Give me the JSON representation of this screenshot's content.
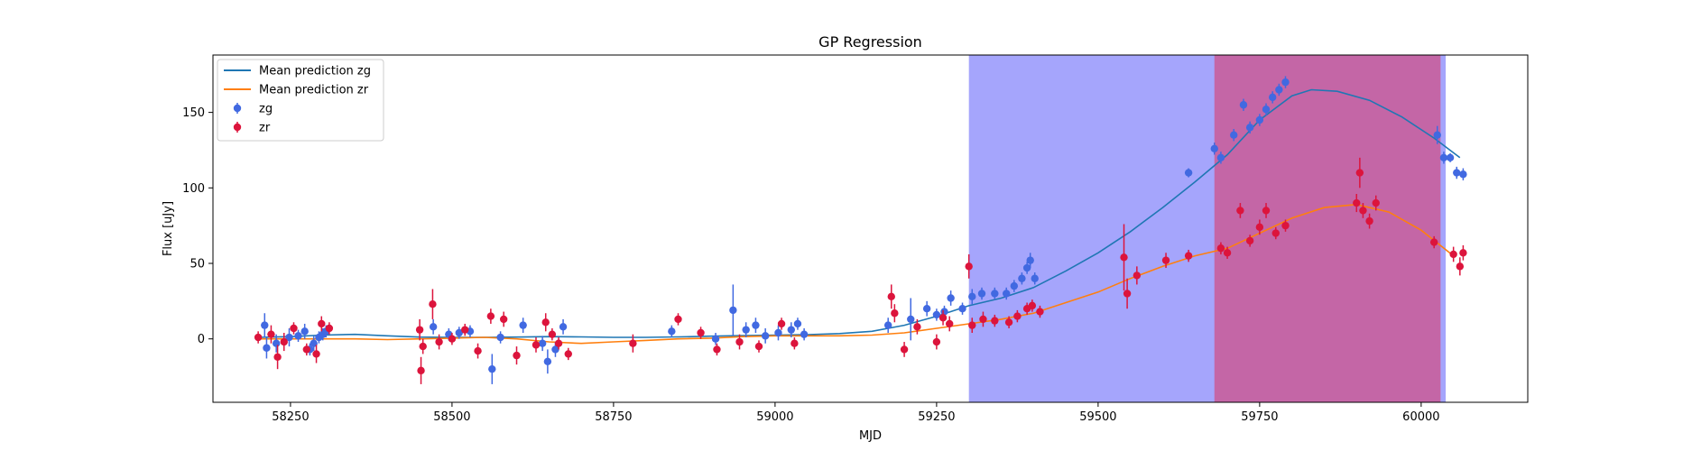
{
  "chart_data": {
    "type": "scatter",
    "title": "GP Regression",
    "xlabel": "MJD",
    "ylabel": "Flux [uJy]",
    "xlim": [
      58130,
      60165
    ],
    "ylim": [
      -42,
      188
    ],
    "xticks": [
      58250,
      58500,
      58750,
      59000,
      59250,
      59500,
      59750,
      60000
    ],
    "yticks": [
      0,
      50,
      100,
      150
    ],
    "grid": false,
    "legend": {
      "placement": "top-left"
    },
    "shaded_regions": [
      {
        "x0": 59300,
        "x1": 60038,
        "color": "#a5a5fc"
      },
      {
        "x0": 59680,
        "x1": 60030,
        "color": "#c466a6"
      }
    ],
    "series": [
      {
        "name": "Mean prediction zg",
        "kind": "line",
        "color": "#1f77b4",
        "points": [
          [
            58200,
            1
          ],
          [
            58250,
            1.5
          ],
          [
            58300,
            2.5
          ],
          [
            58350,
            3
          ],
          [
            58400,
            2
          ],
          [
            58450,
            1.2
          ],
          [
            58500,
            1
          ],
          [
            58550,
            1
          ],
          [
            58600,
            1.2
          ],
          [
            58650,
            1.5
          ],
          [
            58700,
            1.3
          ],
          [
            58750,
            1
          ],
          [
            58800,
            1
          ],
          [
            58850,
            1.3
          ],
          [
            58900,
            1.8
          ],
          [
            58950,
            2.2
          ],
          [
            59000,
            2.5
          ],
          [
            59050,
            2.8
          ],
          [
            59100,
            3.5
          ],
          [
            59150,
            5
          ],
          [
            59200,
            9
          ],
          [
            59250,
            15
          ],
          [
            59300,
            22
          ],
          [
            59350,
            27
          ],
          [
            59400,
            34
          ],
          [
            59450,
            45
          ],
          [
            59500,
            57
          ],
          [
            59550,
            71
          ],
          [
            59600,
            87
          ],
          [
            59650,
            104
          ],
          [
            59700,
            122
          ],
          [
            59750,
            145
          ],
          [
            59800,
            161
          ],
          [
            59830,
            165
          ],
          [
            59870,
            164
          ],
          [
            59920,
            158
          ],
          [
            59970,
            147
          ],
          [
            60020,
            133
          ],
          [
            60060,
            120
          ]
        ]
      },
      {
        "name": "Mean prediction zr",
        "kind": "line",
        "color": "#ff7f0e",
        "points": [
          [
            58200,
            0
          ],
          [
            58250,
            0
          ],
          [
            58300,
            0
          ],
          [
            58350,
            0
          ],
          [
            58400,
            -0.5
          ],
          [
            58450,
            0
          ],
          [
            58500,
            0.5
          ],
          [
            58550,
            1
          ],
          [
            58600,
            0
          ],
          [
            58650,
            -2
          ],
          [
            58700,
            -3
          ],
          [
            58750,
            -2
          ],
          [
            58800,
            -1
          ],
          [
            58850,
            0
          ],
          [
            58900,
            0.5
          ],
          [
            58950,
            1.5
          ],
          [
            59000,
            2
          ],
          [
            59050,
            2
          ],
          [
            59100,
            2
          ],
          [
            59150,
            2.5
          ],
          [
            59200,
            4
          ],
          [
            59250,
            7
          ],
          [
            59300,
            10
          ],
          [
            59350,
            13
          ],
          [
            59400,
            17
          ],
          [
            59450,
            24
          ],
          [
            59500,
            31
          ],
          [
            59550,
            40
          ],
          [
            59600,
            48
          ],
          [
            59650,
            55
          ],
          [
            59700,
            60
          ],
          [
            59750,
            70
          ],
          [
            59800,
            80
          ],
          [
            59850,
            87
          ],
          [
            59900,
            89
          ],
          [
            59950,
            84
          ],
          [
            60000,
            72
          ],
          [
            60050,
            55
          ]
        ]
      },
      {
        "name": "zg",
        "kind": "errorbar",
        "color": "#4169e1",
        "points": [
          [
            58210,
            9,
            8
          ],
          [
            58213,
            -6,
            7
          ],
          [
            58228,
            -3,
            6
          ],
          [
            58248,
            1,
            6
          ],
          [
            58262,
            2,
            4
          ],
          [
            58272,
            5,
            5
          ],
          [
            58280,
            -7,
            4
          ],
          [
            58286,
            -3,
            5
          ],
          [
            58294,
            1,
            4
          ],
          [
            58300,
            3,
            4
          ],
          [
            58305,
            5,
            4
          ],
          [
            58471,
            8,
            5
          ],
          [
            58495,
            3,
            4
          ],
          [
            58511,
            4,
            4
          ],
          [
            58528,
            5,
            4
          ],
          [
            58562,
            -20,
            10
          ],
          [
            58575,
            1,
            4
          ],
          [
            58610,
            9,
            5
          ],
          [
            58640,
            -3,
            5
          ],
          [
            58648,
            -15,
            8
          ],
          [
            58660,
            -7,
            5
          ],
          [
            58672,
            8,
            5
          ],
          [
            58840,
            5,
            4
          ],
          [
            58908,
            0,
            4
          ],
          [
            58935,
            19,
            17
          ],
          [
            58955,
            6,
            5
          ],
          [
            58970,
            9,
            5
          ],
          [
            58985,
            2,
            5
          ],
          [
            59005,
            4,
            5
          ],
          [
            59025,
            6,
            5
          ],
          [
            59035,
            10,
            4
          ],
          [
            59045,
            3,
            4
          ],
          [
            59175,
            9,
            5
          ],
          [
            59210,
            13,
            14
          ],
          [
            59235,
            20,
            5
          ],
          [
            59250,
            16,
            4
          ],
          [
            59262,
            18,
            4
          ],
          [
            59272,
            27,
            5
          ],
          [
            59290,
            20,
            4
          ],
          [
            59305,
            28,
            5
          ],
          [
            59320,
            30,
            4
          ],
          [
            59340,
            30,
            4
          ],
          [
            59358,
            30,
            4
          ],
          [
            59370,
            35,
            4
          ],
          [
            59382,
            40,
            4
          ],
          [
            59390,
            47,
            4
          ],
          [
            59395,
            52,
            5
          ],
          [
            59402,
            40,
            4
          ],
          [
            59640,
            110,
            3
          ],
          [
            59680,
            126,
            4
          ],
          [
            59690,
            120,
            4
          ],
          [
            59710,
            135,
            4
          ],
          [
            59725,
            155,
            4
          ],
          [
            59735,
            140,
            4
          ],
          [
            59750,
            145,
            4
          ],
          [
            59760,
            152,
            4
          ],
          [
            59770,
            160,
            4
          ],
          [
            59780,
            165,
            4
          ],
          [
            59790,
            170,
            4
          ],
          [
            60025,
            135,
            6
          ],
          [
            60035,
            120,
            4
          ],
          [
            60045,
            120,
            3
          ],
          [
            60055,
            110,
            4
          ],
          [
            60065,
            109,
            4
          ]
        ]
      },
      {
        "name": "zr",
        "kind": "errorbar",
        "color": "#dc143c",
        "points": [
          [
            58200,
            1,
            4
          ],
          [
            58220,
            3,
            6
          ],
          [
            58230,
            -12,
            8
          ],
          [
            58240,
            -2,
            6
          ],
          [
            58255,
            7,
            4
          ],
          [
            58275,
            -7,
            4
          ],
          [
            58290,
            -10,
            6
          ],
          [
            58298,
            10,
            5
          ],
          [
            58310,
            7,
            4
          ],
          [
            58450,
            6,
            7
          ],
          [
            58452,
            -21,
            9
          ],
          [
            58455,
            -5,
            5
          ],
          [
            58470,
            23,
            10
          ],
          [
            58480,
            -2,
            5
          ],
          [
            58500,
            0,
            4
          ],
          [
            58520,
            6,
            4
          ],
          [
            58540,
            -8,
            5
          ],
          [
            58560,
            15,
            5
          ],
          [
            58580,
            13,
            5
          ],
          [
            58600,
            -11,
            6
          ],
          [
            58630,
            -4,
            5
          ],
          [
            58645,
            11,
            6
          ],
          [
            58655,
            3,
            4
          ],
          [
            58665,
            -3,
            4
          ],
          [
            58680,
            -10,
            4
          ],
          [
            58780,
            -3,
            6
          ],
          [
            58850,
            13,
            4
          ],
          [
            58885,
            4,
            4
          ],
          [
            58910,
            -7,
            4
          ],
          [
            58945,
            -2,
            5
          ],
          [
            58975,
            -5,
            4
          ],
          [
            59010,
            10,
            4
          ],
          [
            59030,
            -3,
            4
          ],
          [
            59180,
            28,
            8
          ],
          [
            59185,
            17,
            6
          ],
          [
            59200,
            -7,
            5
          ],
          [
            59220,
            8,
            5
          ],
          [
            59250,
            -2,
            5
          ],
          [
            59260,
            14,
            5
          ],
          [
            59270,
            10,
            5
          ],
          [
            59300,
            48,
            8
          ],
          [
            59305,
            9,
            5
          ],
          [
            59322,
            13,
            5
          ],
          [
            59340,
            12,
            4
          ],
          [
            59362,
            11,
            4
          ],
          [
            59375,
            15,
            4
          ],
          [
            59390,
            20,
            4
          ],
          [
            59398,
            22,
            4
          ],
          [
            59410,
            18,
            4
          ],
          [
            59540,
            54,
            22
          ],
          [
            59545,
            30,
            10
          ],
          [
            59560,
            42,
            6
          ],
          [
            59605,
            52,
            5
          ],
          [
            59640,
            55,
            4
          ],
          [
            59690,
            60,
            4
          ],
          [
            59700,
            57,
            4
          ],
          [
            59720,
            85,
            5
          ],
          [
            59735,
            65,
            4
          ],
          [
            59750,
            74,
            5
          ],
          [
            59760,
            85,
            5
          ],
          [
            59775,
            70,
            4
          ],
          [
            59790,
            75,
            4
          ],
          [
            59900,
            90,
            6
          ],
          [
            59905,
            110,
            10
          ],
          [
            59910,
            85,
            5
          ],
          [
            59920,
            78,
            5
          ],
          [
            59930,
            90,
            5
          ],
          [
            60020,
            64,
            4
          ],
          [
            60050,
            56,
            5
          ],
          [
            60060,
            48,
            6
          ],
          [
            60065,
            57,
            5
          ]
        ]
      }
    ]
  }
}
